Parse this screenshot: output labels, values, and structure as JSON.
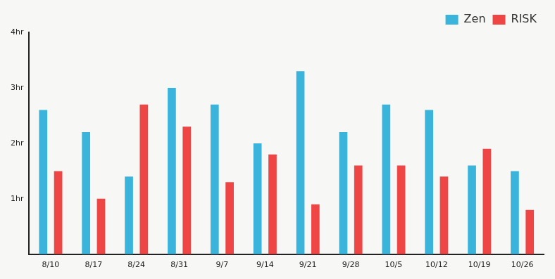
{
  "chart_data": {
    "type": "bar",
    "categories": [
      "8/10",
      "8/17",
      "8/24",
      "8/31",
      "9/7",
      "9/14",
      "9/21",
      "9/28",
      "10/5",
      "10/12",
      "10/19",
      "10/26"
    ],
    "series": [
      {
        "name": "Zen",
        "color": "#3bb4dc",
        "values": [
          2.6,
          2.2,
          1.4,
          3.0,
          2.7,
          2.0,
          3.3,
          2.2,
          2.7,
          2.6,
          1.6,
          1.5
        ]
      },
      {
        "name": "RISK",
        "color": "#ee4545",
        "values": [
          1.5,
          1.0,
          2.7,
          2.3,
          1.3,
          1.8,
          0.9,
          1.6,
          1.6,
          1.4,
          1.9,
          0.8
        ]
      }
    ],
    "ylim": [
      0,
      4
    ],
    "yticks": [
      {
        "value": 1,
        "label": "1hr"
      },
      {
        "value": 2,
        "label": "2hr"
      },
      {
        "value": 3,
        "label": "3hr"
      },
      {
        "value": 4,
        "label": "4hr"
      }
    ],
    "grid": false,
    "legend": "top-right"
  }
}
